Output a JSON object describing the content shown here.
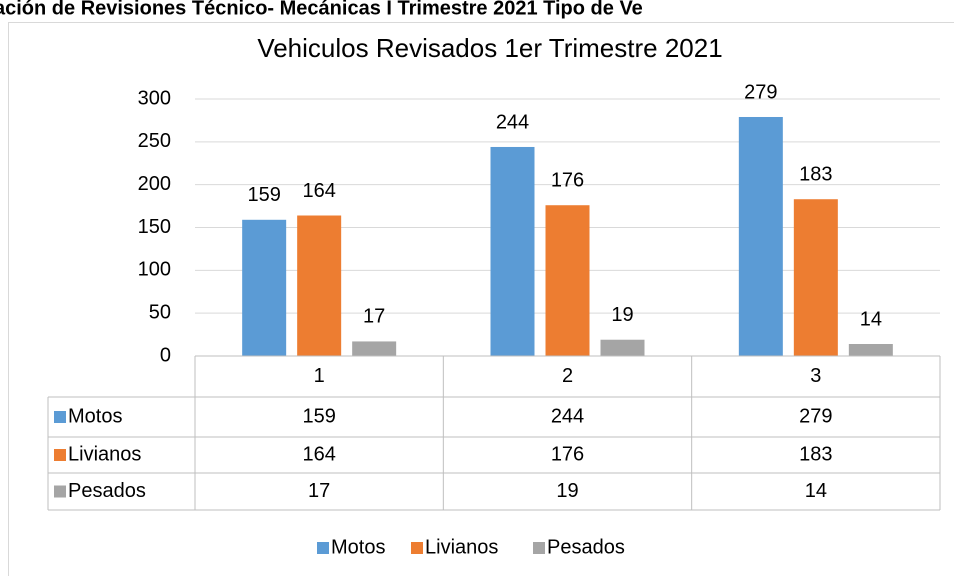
{
  "page_heading": "ación de Revisiones Técnico- Mecánicas I Trimestre 2021 Tipo de Ve",
  "chart_data": {
    "type": "bar",
    "title": "Vehiculos Revisados 1er Trimestre 2021",
    "categories": [
      "1",
      "2",
      "3"
    ],
    "series": [
      {
        "name": "Motos",
        "color": "#5b9bd5",
        "values": [
          159,
          244,
          279
        ]
      },
      {
        "name": "Livianos",
        "color": "#ed7d31",
        "values": [
          164,
          176,
          183
        ]
      },
      {
        "name": "Pesados",
        "color": "#a5a5a5",
        "values": [
          17,
          19,
          14
        ]
      }
    ],
    "ylim": [
      0,
      300
    ],
    "yticks": [
      0,
      50,
      100,
      150,
      200,
      250,
      300
    ],
    "grid": true,
    "legend": "bottom",
    "data_table": true
  }
}
